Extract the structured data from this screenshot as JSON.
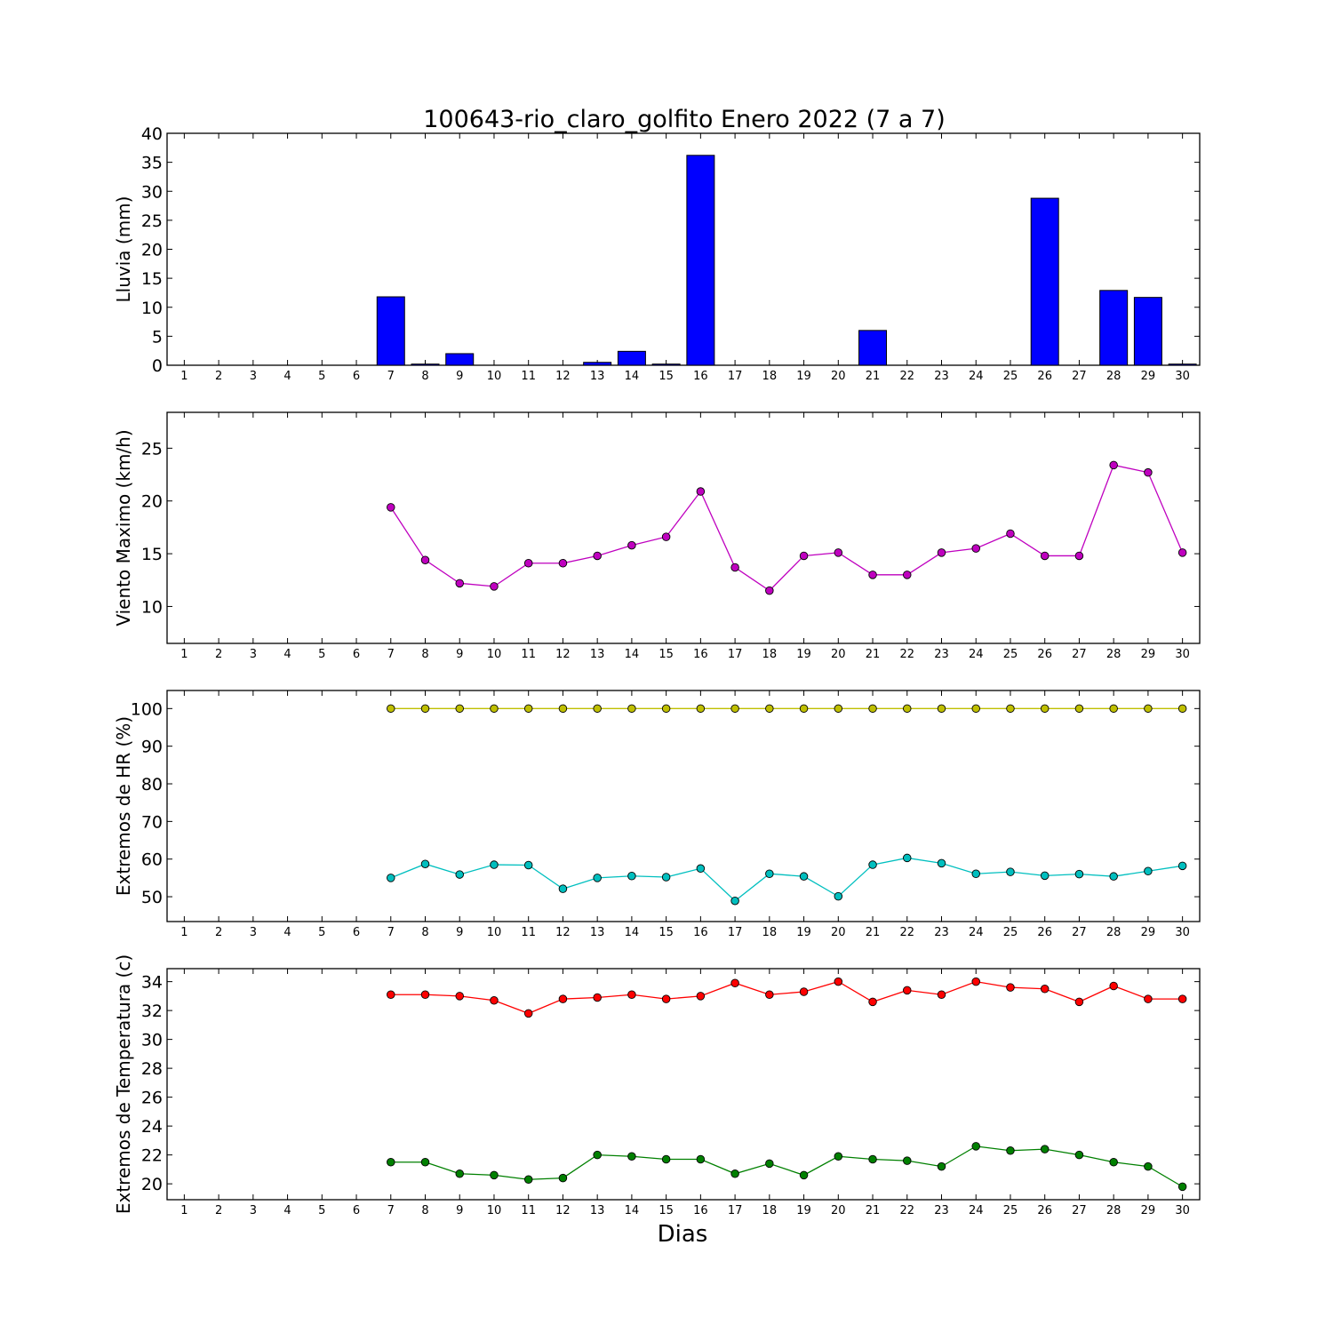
{
  "chart_data": {
    "title": "100643-rio_claro_golfito Enero 2022  (7 a 7)",
    "xlabel": "Dias",
    "x": [
      1,
      2,
      3,
      4,
      5,
      6,
      7,
      8,
      9,
      10,
      11,
      12,
      13,
      14,
      15,
      16,
      17,
      18,
      19,
      20,
      21,
      22,
      23,
      24,
      25,
      26,
      27,
      28,
      29,
      30
    ],
    "panels": [
      {
        "type": "bar",
        "ylabel": "Lluvia (mm)",
        "ylim": [
          0,
          40
        ],
        "yticks": [
          0,
          5,
          10,
          15,
          20,
          25,
          30,
          35,
          40
        ],
        "series": [
          {
            "color": "#0000ff",
            "values": [
              null,
              null,
              null,
              null,
              null,
              null,
              11.8,
              0.2,
              2.0,
              0,
              0,
              0,
              0.5,
              2.4,
              0.2,
              36.2,
              0,
              0,
              0,
              0,
              6.0,
              0,
              0,
              0,
              0,
              28.8,
              0,
              12.9,
              11.7,
              0.2
            ]
          }
        ]
      },
      {
        "type": "line",
        "ylabel": "Viento Maximo (km/h)",
        "ylim": [
          6.5,
          28.4
        ],
        "yticks": [
          10,
          15,
          20,
          25
        ],
        "series": [
          {
            "color": "#bf00bf",
            "values": [
              null,
              null,
              null,
              null,
              null,
              null,
              19.4,
              14.4,
              12.2,
              11.9,
              14.1,
              14.1,
              14.8,
              15.8,
              16.6,
              20.9,
              13.7,
              11.5,
              14.8,
              15.1,
              13.0,
              13.0,
              15.1,
              15.5,
              16.9,
              14.8,
              14.8,
              23.4,
              22.7,
              15.1
            ]
          }
        ]
      },
      {
        "type": "line",
        "ylabel": "Extremos de HR (%)",
        "ylim": [
          43.4,
          104.8
        ],
        "yticks": [
          50,
          60,
          70,
          80,
          90,
          100
        ],
        "series": [
          {
            "color": "#bfbf00",
            "values": [
              null,
              null,
              null,
              null,
              null,
              null,
              100,
              100,
              100,
              100,
              100,
              100,
              100,
              100,
              100,
              100,
              100,
              100,
              100,
              100,
              100,
              100,
              100,
              100,
              100,
              100,
              100,
              100,
              100,
              100
            ]
          },
          {
            "color": "#00bfbf",
            "values": [
              null,
              null,
              null,
              null,
              null,
              null,
              55,
              58.7,
              55.9,
              58.5,
              58.4,
              52.1,
              55,
              55.5,
              55.2,
              57.5,
              48.9,
              56.1,
              55.4,
              50.1,
              58.5,
              60.3,
              58.9,
              56.1,
              56.6,
              55.6,
              56,
              55.4,
              56.8,
              58.2
            ]
          }
        ]
      },
      {
        "type": "line",
        "ylabel": "Extremos de Temperatura (c)",
        "ylim": [
          18.9,
          34.9
        ],
        "yticks": [
          20,
          22,
          24,
          26,
          28,
          30,
          32,
          34
        ],
        "series": [
          {
            "color": "#ff0000",
            "values": [
              null,
              null,
              null,
              null,
              null,
              null,
              33.1,
              33.1,
              33.0,
              32.7,
              31.8,
              32.8,
              32.9,
              33.1,
              32.8,
              33.0,
              33.9,
              33.1,
              33.3,
              34.0,
              32.6,
              33.4,
              33.1,
              34.0,
              33.6,
              33.5,
              32.6,
              33.7,
              32.8,
              32.8
            ]
          },
          {
            "color": "#008000",
            "values": [
              null,
              null,
              null,
              null,
              null,
              null,
              21.5,
              21.5,
              20.7,
              20.6,
              20.3,
              20.4,
              22.0,
              21.9,
              21.7,
              21.7,
              20.7,
              21.4,
              20.6,
              21.9,
              21.7,
              21.6,
              21.2,
              22.6,
              22.3,
              22.4,
              22.0,
              21.5,
              21.2,
              19.8
            ]
          }
        ]
      }
    ]
  }
}
